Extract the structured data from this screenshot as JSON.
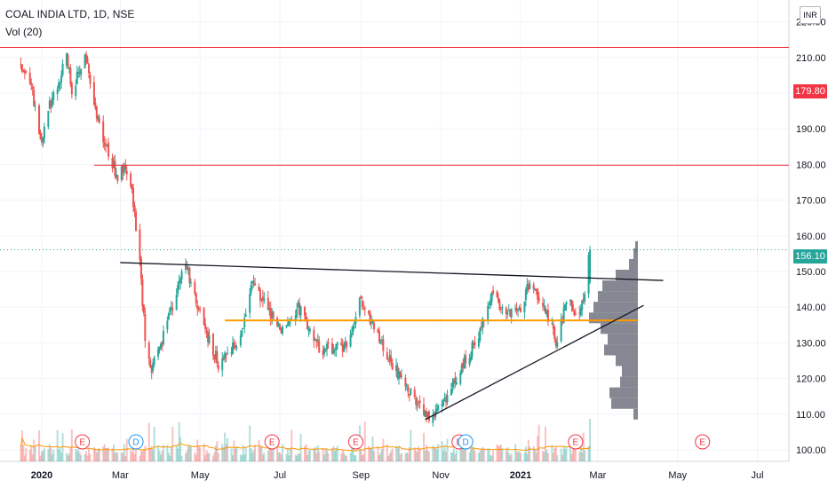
{
  "header": {
    "title": "COAL INDIA LTD, 1D, NSE",
    "volume_label": "Vol (20)",
    "currency": "INR"
  },
  "price_tags": {
    "resistance": "179.80",
    "last": "156.10"
  },
  "colors": {
    "up": "#26a69a",
    "down": "#ef5350",
    "resistance": "#f23645",
    "poc": "#ff9800",
    "trendline": "#131722",
    "volume_ma": "#ff9800",
    "profile": "#787b86",
    "last_price": "#26a69a"
  },
  "chart_data": {
    "type": "candlestick",
    "title": "COAL INDIA LTD, 1D, NSE",
    "y_axis": {
      "ticks": [
        "100.00",
        "110.00",
        "120.00",
        "130.00",
        "140.00",
        "150.00",
        "160.00",
        "170.00",
        "180.00",
        "190.00",
        "200.00",
        "210.00",
        "220.00"
      ],
      "range": [
        98,
        222
      ]
    },
    "x_axis": {
      "ticks": [
        "2020",
        "Mar",
        "May",
        "Jul",
        "Sep",
        "Nov",
        "2021",
        "Mar",
        "May",
        "Jul"
      ]
    },
    "price_path": [
      [
        "2019-12-16",
        208
      ],
      [
        "2019-12-24",
        202
      ],
      [
        "2020-01-01",
        186
      ],
      [
        "2020-01-06",
        196
      ],
      [
        "2020-01-13",
        201
      ],
      [
        "2020-01-20",
        212
      ],
      [
        "2020-01-24",
        200
      ],
      [
        "2020-02-03",
        212
      ],
      [
        "2020-02-10",
        197
      ],
      [
        "2020-02-20",
        184
      ],
      [
        "2020-02-28",
        176
      ],
      [
        "2020-03-05",
        180
      ],
      [
        "2020-03-10",
        172
      ],
      [
        "2020-03-16",
        152
      ],
      [
        "2020-03-20",
        132
      ],
      [
        "2020-03-25",
        122
      ],
      [
        "2020-04-06",
        136
      ],
      [
        "2020-04-20",
        152
      ],
      [
        "2020-05-01",
        138
      ],
      [
        "2020-05-15",
        124
      ],
      [
        "2020-06-01",
        132
      ],
      [
        "2020-06-10",
        148
      ],
      [
        "2020-06-20",
        140
      ],
      [
        "2020-07-01",
        134
      ],
      [
        "2020-07-15",
        140
      ],
      [
        "2020-08-01",
        128
      ],
      [
        "2020-08-20",
        129
      ],
      [
        "2020-09-01",
        142
      ],
      [
        "2020-09-15",
        131
      ],
      [
        "2020-10-01",
        120
      ],
      [
        "2020-10-15",
        113
      ],
      [
        "2020-10-25",
        109
      ],
      [
        "2020-11-05",
        114
      ],
      [
        "2020-11-20",
        125
      ],
      [
        "2020-12-01",
        133
      ],
      [
        "2020-12-10",
        145
      ],
      [
        "2020-12-20",
        138
      ],
      [
        "2021-01-01",
        140
      ],
      [
        "2021-01-08",
        147
      ],
      [
        "2021-01-20",
        140
      ],
      [
        "2021-01-28",
        130
      ],
      [
        "2021-02-05",
        142
      ],
      [
        "2021-02-15",
        137
      ],
      [
        "2021-02-19",
        145
      ],
      [
        "2021-02-23",
        156
      ]
    ],
    "last_price": 156.1,
    "horizontal_levels": [
      {
        "price": 212.8,
        "color": "red"
      },
      {
        "price": 179.8,
        "color": "red",
        "label": "179.80"
      },
      {
        "price": 136.3,
        "color": "orange"
      }
    ],
    "trendlines": [
      {
        "from": [
          "2020-03-01",
          152.5
        ],
        "to": [
          "2021-04-20",
          147.5
        ]
      },
      {
        "from": [
          "2020-10-20",
          108.5
        ],
        "to": [
          "2021-04-05",
          140.5
        ]
      }
    ],
    "event_markers": [
      {
        "date": "2020-02-01",
        "label": "E",
        "kind": "earnings"
      },
      {
        "date": "2020-03-13",
        "label": "D",
        "kind": "dividend"
      },
      {
        "date": "2020-06-25",
        "label": "E",
        "kind": "earnings"
      },
      {
        "date": "2020-08-28",
        "label": "E",
        "kind": "earnings"
      },
      {
        "date": "2020-11-15",
        "label": "E",
        "kind": "earnings"
      },
      {
        "date": "2020-11-20",
        "label": "D",
        "kind": "dividend"
      },
      {
        "date": "2021-02-12",
        "label": "E",
        "kind": "earnings"
      },
      {
        "date": "2021-05-20",
        "label": "E",
        "kind": "earnings"
      }
    ],
    "volume_profile": [
      {
        "price": 110,
        "size": 5
      },
      {
        "price": 113,
        "size": 30
      },
      {
        "price": 116,
        "size": 32
      },
      {
        "price": 119,
        "size": 20
      },
      {
        "price": 122,
        "size": 18
      },
      {
        "price": 125,
        "size": 25
      },
      {
        "price": 128,
        "size": 38
      },
      {
        "price": 131,
        "size": 34
      },
      {
        "price": 134,
        "size": 42
      },
      {
        "price": 137,
        "size": 55
      },
      {
        "price": 140,
        "size": 50
      },
      {
        "price": 143,
        "size": 45
      },
      {
        "price": 146,
        "size": 40
      },
      {
        "price": 149,
        "size": 25
      },
      {
        "price": 152,
        "size": 10
      },
      {
        "price": 155,
        "size": 5
      },
      {
        "price": 157,
        "size": 3
      }
    ]
  }
}
